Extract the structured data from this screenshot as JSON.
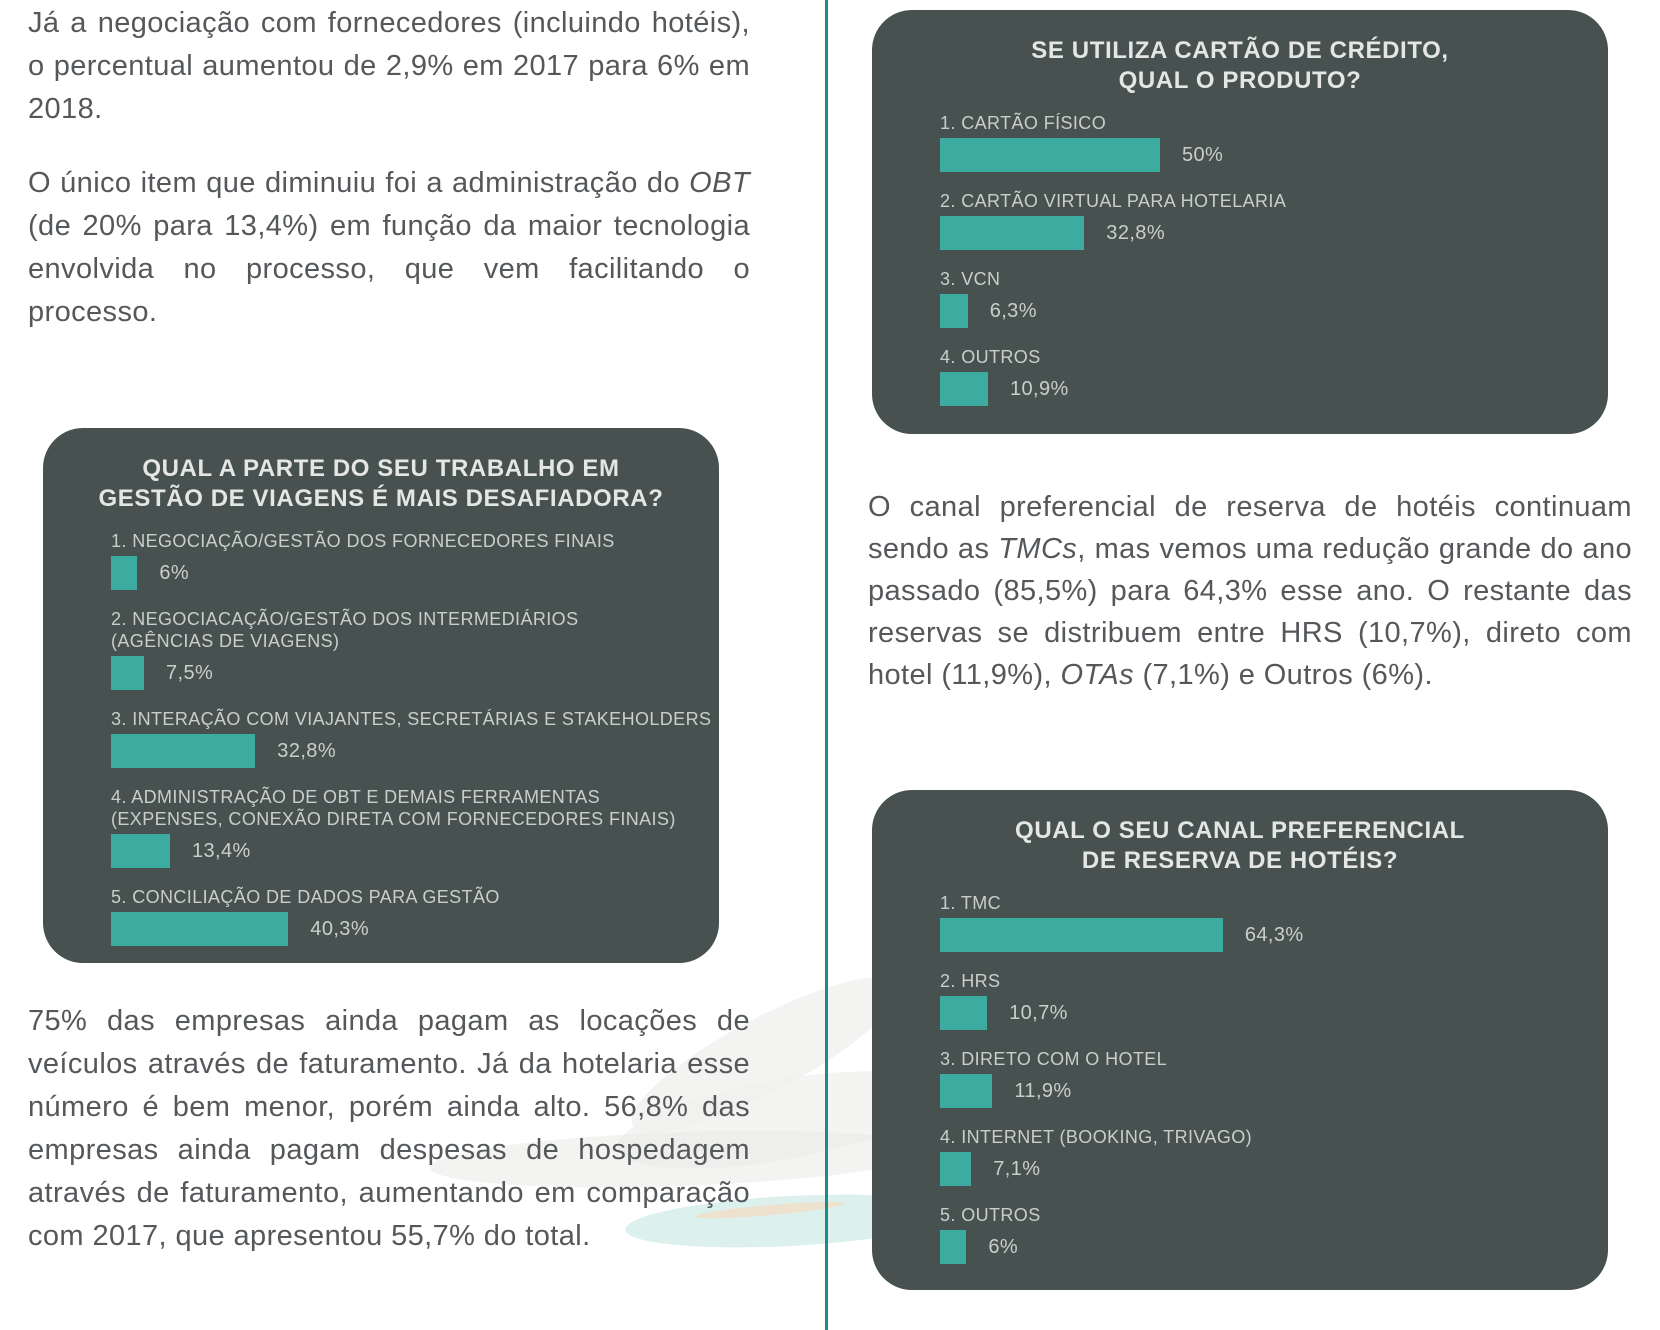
{
  "page": {
    "background": "#ffffff",
    "divider_color": "#1e8c86",
    "accent_color": "#3caca1",
    "panel_background": "#475250",
    "panel_title_color": "#e3e6e5",
    "panel_label_color": "#c9cecc",
    "body_text_color": "#55585b"
  },
  "left_column": {
    "paragraph_1": {
      "segments": [
        {
          "text": "Já a negociação com fornecedores (incluindo hotéis), o percentual aumentou de 2,9% em 2017 para 6% em 2018."
        }
      ]
    },
    "paragraph_2": {
      "segments": [
        {
          "text": "O único item que diminuiu foi a administração do "
        },
        {
          "text": "OBT",
          "italic": true
        },
        {
          "text": " (de 20% para 13,4%) em função da maior tecnologia envolvida no processo, que vem facilitando o processo."
        }
      ]
    },
    "paragraph_3": {
      "segments": [
        {
          "text": "75% das empresas ainda pagam as locações de veículos através de faturamento. Já da hotelaria esse número é bem menor, porém ainda alto. 56,8% das empresas ainda pagam despesas de hospedagem através de faturamento, aumentando em comparação com 2017, que apresentou 55,7% do total."
        }
      ]
    }
  },
  "right_column": {
    "paragraph_1": {
      "segments": [
        {
          "text": "O canal preferencial de reserva de hotéis continuam sendo as "
        },
        {
          "text": "TMCs",
          "italic": true
        },
        {
          "text": ", mas vemos uma redução grande do ano passado (85,5%) para 64,3% esse ano. O restante das reservas se distribuem entre HRS (10,7%), direto com hotel (11,9%), "
        },
        {
          "text": "OTAs",
          "italic": true
        },
        {
          "text": " (7,1%) e Outros (6%)."
        }
      ]
    }
  },
  "chart_data": [
    {
      "type": "bar",
      "orientation": "horizontal",
      "title": "QUAL A PARTE DO SEU TRABALHO EM GESTÃO DE VIAGENS É MAIS DESAFIADORA?",
      "title_lines": [
        "QUAL A PARTE DO SEU TRABALHO EM",
        "GESTÃO DE VIAGENS É MAIS DESAFIADORA?"
      ],
      "categories": [
        "1. NEGOCIAÇÃO/GESTÃO DOS FORNECEDORES FINAIS",
        "2. NEGOCIACAÇÃO/GESTÃO DOS INTERMEDIÁRIOS (AGÊNCIAS DE VIAGENS)",
        "3. INTERAÇÃO COM VIAJANTES, SECRETÁRIAS E STAKEHOLDERS",
        "4. ADMINISTRAÇÃO DE OBT E DEMAIS FERRAMENTAS (EXPENSES, CONEXÃO DIRETA COM FORNECEDORES FINAIS)",
        "5. CONCILIAÇÃO DE DADOS PARA GESTÃO"
      ],
      "category_lines": [
        [
          "1. NEGOCIAÇÃO/GESTÃO DOS FORNECEDORES FINAIS"
        ],
        [
          "2. NEGOCIACAÇÃO/GESTÃO DOS INTERMEDIÁRIOS",
          "(AGÊNCIAS DE VIAGENS)"
        ],
        [
          "3. INTERAÇÃO COM VIAJANTES, SECRETÁRIAS E STAKEHOLDERS"
        ],
        [
          "4. ADMINISTRAÇÃO DE OBT E DEMAIS FERRAMENTAS",
          "(EXPENSES, CONEXÃO DIRETA COM FORNECEDORES FINAIS)"
        ],
        [
          "5. CONCILIAÇÃO DE DADOS PARA GESTÃO"
        ]
      ],
      "values": [
        6,
        7.5,
        32.8,
        13.4,
        40.3
      ],
      "value_labels": [
        "6%",
        "7,5%",
        "32,8%",
        "13,4%",
        "40,3%"
      ],
      "bar_color": "#3caca1",
      "xlim": [
        0,
        100
      ],
      "grid": false,
      "value_label_position": "right-of-bar"
    },
    {
      "type": "bar",
      "orientation": "horizontal",
      "title": "SE UTILIZA CARTÃO DE CRÉDITO, QUAL O PRODUTO?",
      "title_lines": [
        "SE UTILIZA CARTÃO DE CRÉDITO,",
        "QUAL O PRODUTO?"
      ],
      "categories": [
        "1. CARTÃO FÍSICO",
        "2. CARTÃO VIRTUAL PARA HOTELARIA",
        "3. VCN",
        "4. OUTROS"
      ],
      "values": [
        50,
        32.8,
        6.3,
        10.9
      ],
      "value_labels": [
        "50%",
        "32,8%",
        "6,3%",
        "10,9%"
      ],
      "bar_color": "#3caca1",
      "xlim": [
        0,
        100
      ],
      "grid": false,
      "value_label_position": "right-of-bar"
    },
    {
      "type": "bar",
      "orientation": "horizontal",
      "title": "QUAL O SEU CANAL PREFERENCIAL DE RESERVA DE HOTÉIS?",
      "title_lines": [
        "QUAL O SEU CANAL PREFERENCIAL",
        "DE RESERVA DE HOTÉIS?"
      ],
      "categories": [
        "1. TMC",
        "2. HRS",
        "3. DIRETO COM O HOTEL",
        "4. INTERNET (BOOKING, TRIVAGO)",
        "5. OUTROS"
      ],
      "values": [
        64.3,
        10.7,
        11.9,
        7.1,
        6
      ],
      "value_labels": [
        "64,3%",
        "10,7%",
        "11,9%",
        "7,1%",
        "6%"
      ],
      "bar_color": "#3caca1",
      "xlim": [
        0,
        100
      ],
      "grid": false,
      "value_label_position": "right-of-bar"
    }
  ]
}
